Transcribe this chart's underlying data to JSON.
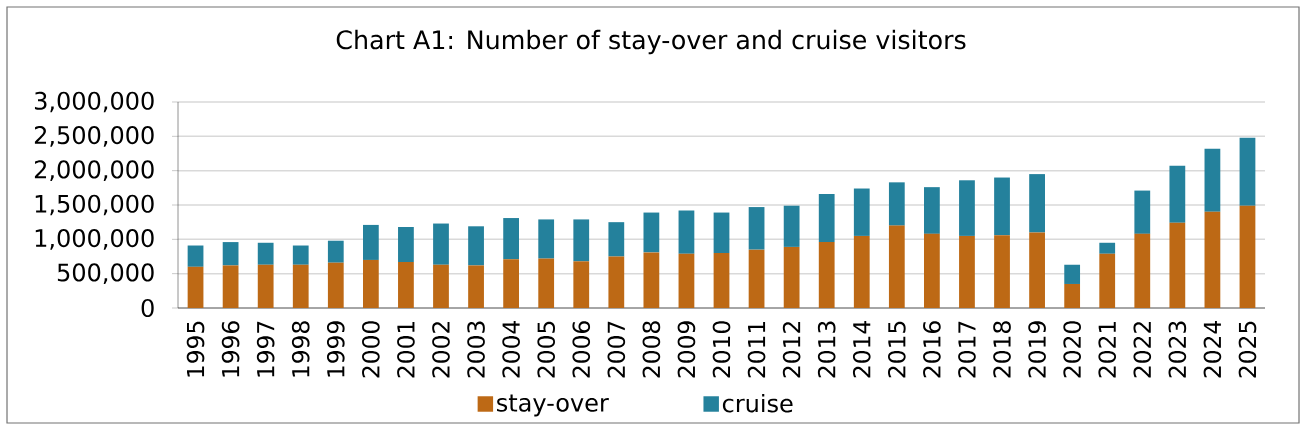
{
  "chart_data": {
    "type": "bar",
    "title": "Chart A1: Number of stay-over and cruise visitors",
    "categories": [
      "1995",
      "1996",
      "1997",
      "1998",
      "1999",
      "2000",
      "2001",
      "2002",
      "2003",
      "2004",
      "2005",
      "2006",
      "2007",
      "2008",
      "2009",
      "2010",
      "2011",
      "2012",
      "2013",
      "2014",
      "2015",
      "2016",
      "2017",
      "2018",
      "2019",
      "2020",
      "2021",
      "2022",
      "2023",
      "2024",
      "2025"
    ],
    "series": [
      {
        "name": "stay-over",
        "color": "#bd6915",
        "values": [
          600000,
          620000,
          630000,
          630000,
          660000,
          700000,
          670000,
          630000,
          620000,
          710000,
          720000,
          680000,
          750000,
          810000,
          790000,
          800000,
          850000,
          890000,
          960000,
          1050000,
          1200000,
          1080000,
          1050000,
          1060000,
          1100000,
          350000,
          790000,
          1080000,
          1240000,
          1400000,
          1490000
        ]
      },
      {
        "name": "cruise",
        "color": "#24819c",
        "values": [
          310000,
          340000,
          320000,
          280000,
          320000,
          510000,
          510000,
          600000,
          570000,
          600000,
          570000,
          610000,
          500000,
          580000,
          630000,
          590000,
          620000,
          600000,
          700000,
          690000,
          630000,
          680000,
          810000,
          840000,
          850000,
          280000,
          160000,
          630000,
          830000,
          920000,
          990000
        ]
      }
    ],
    "stacked": true,
    "ylim": [
      0,
      3000000
    ],
    "yticks": [
      0,
      {
        "value": 500000,
        "label": "500,000"
      },
      {
        "value": 1000000,
        "label": "1,000,000"
      },
      {
        "value": 1500000,
        "label": "1,500,000"
      },
      {
        "value": 2000000,
        "label": "2,000,000"
      },
      {
        "value": 2500000,
        "label": "2,500,000"
      },
      {
        "value": 3000000,
        "label": "3,000,000"
      }
    ],
    "grid": "y",
    "legend": "bottom"
  }
}
